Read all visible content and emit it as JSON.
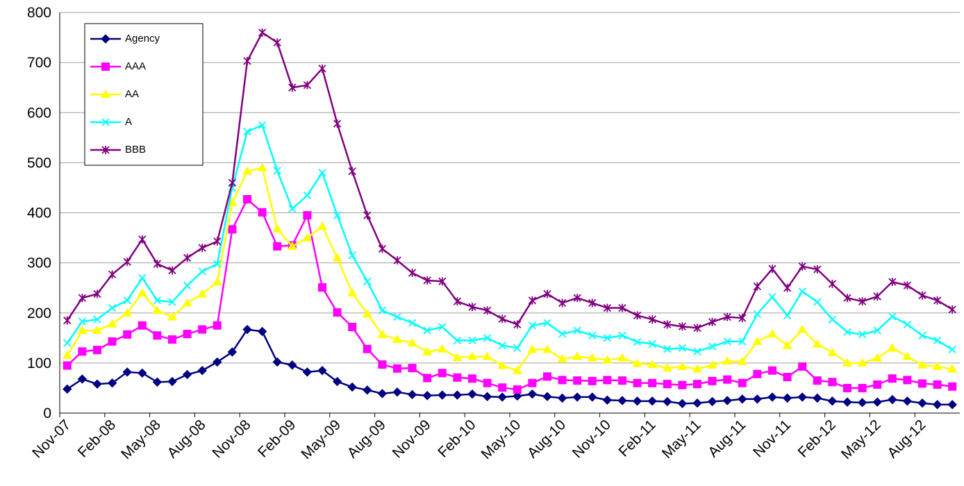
{
  "chart_data": {
    "type": "line",
    "categories": [
      "Nov-07",
      null,
      null,
      "Feb-08",
      null,
      null,
      "May-08",
      null,
      null,
      "Aug-08",
      null,
      null,
      "Nov-08",
      null,
      null,
      "Feb-09",
      null,
      null,
      "May-09",
      null,
      null,
      "Aug-09",
      null,
      null,
      "Nov-09",
      null,
      null,
      "Feb-10",
      null,
      null,
      "May-10",
      null,
      null,
      "Aug-10",
      null,
      null,
      "Nov-10",
      null,
      null,
      "Feb-11",
      null,
      null,
      "May-11",
      null,
      null,
      "Aug-11",
      null,
      null,
      "Nov-11",
      null,
      null,
      "Feb-12",
      null,
      null,
      "May-12",
      null,
      null,
      "Aug-12",
      null,
      null
    ],
    "series": [
      {
        "name": "Agency",
        "color": "#000080",
        "marker": "diamond",
        "values": [
          48,
          68,
          58,
          60,
          82,
          80,
          62,
          63,
          77,
          85,
          102,
          122,
          167,
          163,
          102,
          96,
          82,
          85,
          63,
          52,
          46,
          39,
          42,
          37,
          35,
          36,
          36,
          38,
          33,
          32,
          34,
          38,
          33,
          30,
          32,
          32,
          26,
          25,
          24,
          24,
          23,
          19,
          20,
          23,
          25,
          28,
          28,
          32,
          30,
          32,
          30,
          24,
          22,
          21,
          22,
          27,
          24,
          20,
          17,
          17
        ]
      },
      {
        "name": "AAA",
        "color": "#ff00ff",
        "marker": "square",
        "values": [
          95,
          123,
          126,
          143,
          157,
          175,
          155,
          147,
          158,
          167,
          175,
          367,
          427,
          401,
          333,
          335,
          395,
          251,
          201,
          172,
          128,
          97,
          89,
          90,
          70,
          80,
          71,
          69,
          60,
          51,
          47,
          60,
          73,
          66,
          65,
          64,
          66,
          65,
          60,
          60,
          58,
          56,
          58,
          64,
          67,
          60,
          78,
          85,
          72,
          93,
          65,
          62,
          50,
          50,
          57,
          69,
          66,
          59,
          57,
          53
        ]
      },
      {
        "name": "AA",
        "color": "#ffff00",
        "marker": "triangle",
        "values": [
          115,
          165,
          165,
          178,
          200,
          240,
          205,
          192,
          220,
          238,
          262,
          420,
          483,
          490,
          368,
          333,
          350,
          373,
          310,
          240,
          198,
          157,
          147,
          140,
          122,
          128,
          111,
          113,
          113,
          95,
          85,
          127,
          127,
          108,
          113,
          110,
          106,
          110,
          99,
          97,
          90,
          93,
          88,
          96,
          104,
          103,
          143,
          158,
          135,
          167,
          138,
          121,
          100,
          100,
          110,
          130,
          113,
          96,
          93,
          88
        ]
      },
      {
        "name": "A",
        "color": "#00ffff",
        "marker": "x",
        "values": [
          140,
          183,
          187,
          210,
          225,
          270,
          225,
          222,
          255,
          283,
          298,
          450,
          562,
          575,
          484,
          408,
          435,
          480,
          395,
          315,
          263,
          205,
          192,
          180,
          165,
          172,
          145,
          145,
          150,
          135,
          130,
          175,
          180,
          158,
          165,
          155,
          150,
          155,
          142,
          138,
          128,
          130,
          123,
          133,
          143,
          143,
          198,
          232,
          195,
          243,
          222,
          187,
          162,
          157,
          165,
          193,
          177,
          155,
          145,
          127
        ]
      },
      {
        "name": "BBB",
        "color": "#800080",
        "marker": "star",
        "values": [
          185,
          230,
          238,
          277,
          302,
          347,
          298,
          285,
          310,
          330,
          343,
          460,
          703,
          760,
          740,
          650,
          655,
          688,
          578,
          483,
          395,
          328,
          305,
          280,
          265,
          263,
          223,
          212,
          205,
          188,
          177,
          225,
          238,
          220,
          230,
          220,
          210,
          210,
          195,
          187,
          177,
          173,
          170,
          182,
          192,
          190,
          253,
          288,
          250,
          293,
          287,
          258,
          230,
          223,
          233,
          262,
          255,
          235,
          225,
          207
        ]
      }
    ],
    "ylim": [
      0,
      800
    ],
    "yticks": [
      0,
      100,
      200,
      300,
      400,
      500,
      600,
      700,
      800
    ],
    "grid": true,
    "legend": "upper left"
  }
}
